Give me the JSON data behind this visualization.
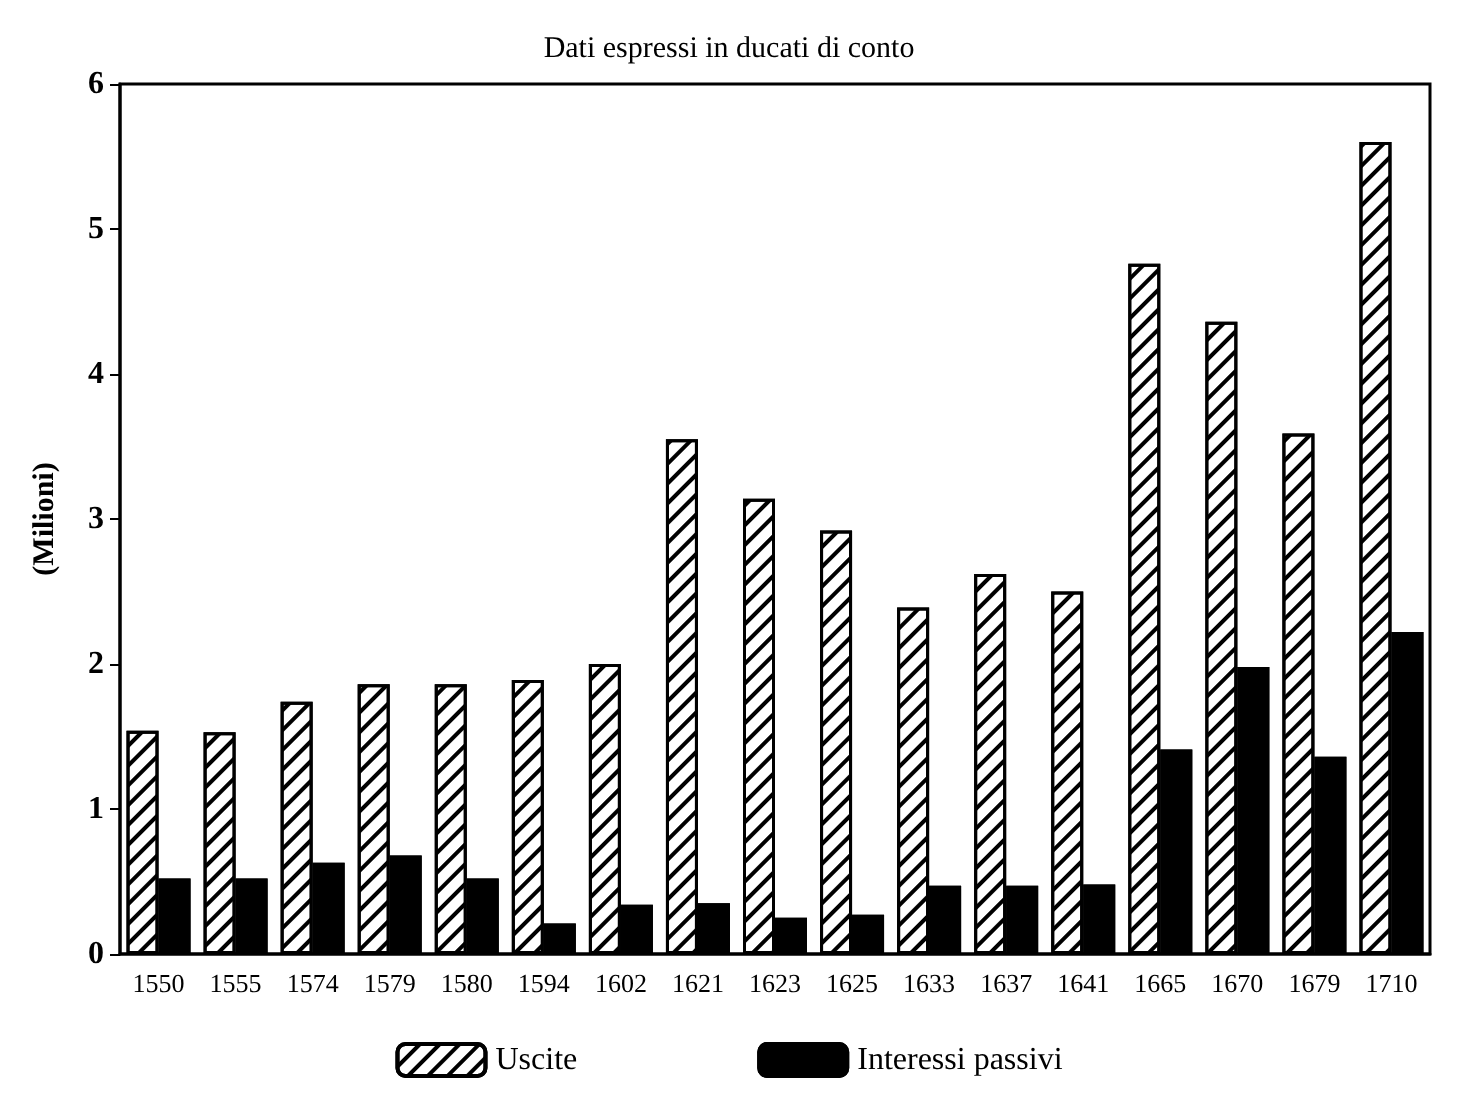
{
  "chart_data": {
    "type": "bar",
    "title": "Dati espressi in ducati di conto",
    "ylabel": "(Milioni)",
    "categories": [
      "1550",
      "1555",
      "1574",
      "1579",
      "1580",
      "1594",
      "1602",
      "1621",
      "1623",
      "1625",
      "1633",
      "1637",
      "1641",
      "1665",
      "1670",
      "1679",
      "1710"
    ],
    "series": [
      {
        "name": "Uscite",
        "color": "#ffffff",
        "values": [
          1.54,
          1.53,
          1.74,
          1.86,
          1.86,
          1.89,
          2.0,
          3.55,
          3.14,
          2.92,
          2.39,
          2.62,
          2.5,
          4.76,
          4.36,
          3.59,
          5.6
        ]
      },
      {
        "name": "Interessi passivi",
        "color": "#000000",
        "values": [
          0.52,
          0.52,
          0.63,
          0.68,
          0.52,
          0.21,
          0.34,
          0.35,
          0.25,
          0.27,
          0.47,
          0.47,
          0.48,
          1.41,
          1.98,
          1.36,
          2.22
        ]
      }
    ],
    "ylim": [
      0,
      6
    ],
    "yticks": [
      0,
      1,
      2,
      3,
      4,
      5,
      6
    ],
    "grid": false,
    "legend": "bottom"
  }
}
